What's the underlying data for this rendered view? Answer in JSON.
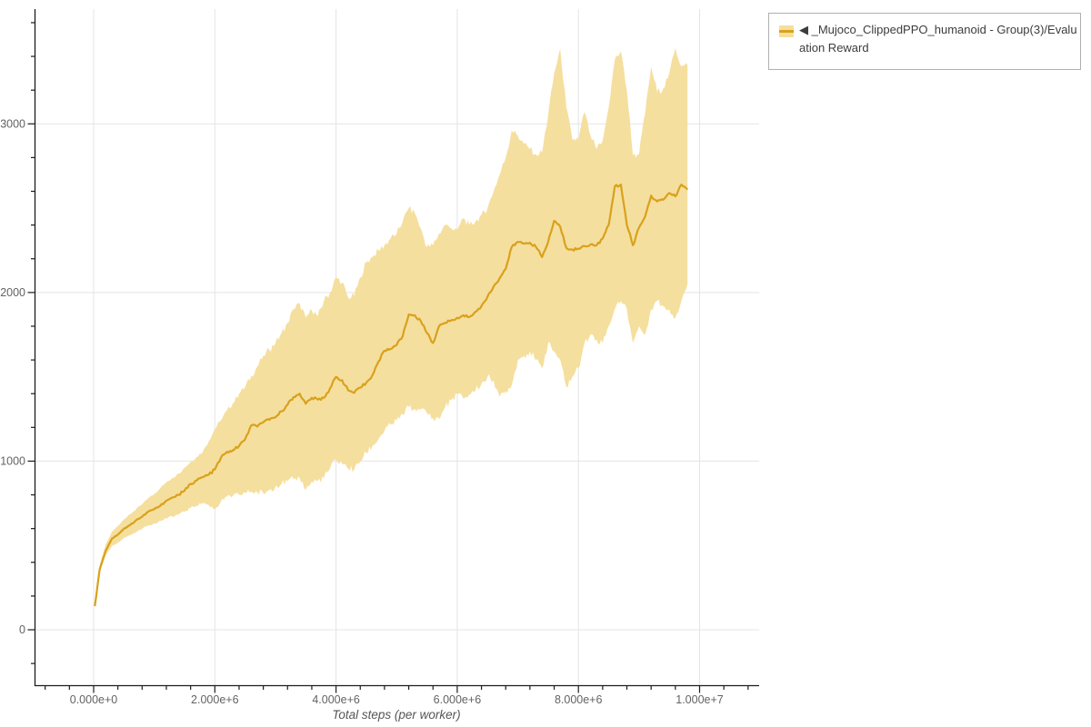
{
  "axis": {
    "x_label": "Total steps (per worker)",
    "x_tick_labels": [
      "0.000e+0",
      "2.000e+6",
      "4.000e+6",
      "6.000e+6",
      "8.000e+6",
      "1.000e+7"
    ],
    "x_tick_values_millions": [
      0,
      2,
      4,
      6,
      8,
      10
    ],
    "y_tick_labels": [
      "0",
      "1000",
      "2000",
      "3000"
    ],
    "y_tick_values": [
      0,
      1000,
      2000,
      3000
    ],
    "x_minor_step_millions": 0.4,
    "y_minor_step": 200
  },
  "legend": {
    "label": "◀ _Mujoco_ClippedPPO_humanoid - Group(3)/Evaluation Reward"
  },
  "colors": {
    "line": "#d9a11c",
    "band": "#f5df9e",
    "grid": "#e4e4e4",
    "axis": "#1c1c1c",
    "tick_text": "#636363",
    "axis_title": "#555555",
    "legend_border": "#b0b0b0",
    "legend_text": "#3c3c3c"
  },
  "chart_data": {
    "type": "line",
    "title": "",
    "xlabel": "Total steps (per worker)",
    "ylabel": "",
    "x_unit": "steps (millions)",
    "xlim_millions": [
      -0.98,
      10.98
    ],
    "ylim": [
      -330,
      3680
    ],
    "grid": true,
    "legend_position": "top-right",
    "series": [
      {
        "name": "_Mujoco_ClippedPPO_humanoid - Group(3)/Evaluation Reward",
        "x_millions": [
          0.02,
          0.1,
          0.2,
          0.3,
          0.4,
          0.5,
          0.6,
          0.7,
          0.8,
          0.9,
          1.0,
          1.1,
          1.2,
          1.3,
          1.4,
          1.5,
          1.6,
          1.7,
          1.8,
          1.9,
          2.0,
          2.1,
          2.2,
          2.3,
          2.4,
          2.5,
          2.6,
          2.7,
          2.8,
          2.9,
          3.0,
          3.1,
          3.2,
          3.3,
          3.4,
          3.5,
          3.6,
          3.7,
          3.8,
          3.9,
          4.0,
          4.1,
          4.2,
          4.3,
          4.4,
          4.5,
          4.6,
          4.7,
          4.8,
          4.9,
          5.0,
          5.1,
          5.2,
          5.3,
          5.4,
          5.5,
          5.6,
          5.7,
          5.8,
          5.9,
          6.0,
          6.1,
          6.2,
          6.3,
          6.4,
          6.5,
          6.6,
          6.7,
          6.8,
          6.9,
          7.0,
          7.1,
          7.2,
          7.3,
          7.4,
          7.5,
          7.6,
          7.7,
          7.8,
          7.9,
          8.0,
          8.1,
          8.2,
          8.3,
          8.4,
          8.5,
          8.6,
          8.7,
          8.8,
          8.9,
          9.0,
          9.1,
          9.2,
          9.3,
          9.4,
          9.5,
          9.6,
          9.7,
          9.8
        ],
        "mean": [
          140,
          360,
          470,
          540,
          565,
          600,
          620,
          650,
          670,
          700,
          715,
          735,
          765,
          785,
          800,
          825,
          865,
          885,
          905,
          920,
          950,
          1020,
          1055,
          1065,
          1090,
          1130,
          1212,
          1205,
          1230,
          1245,
          1260,
          1295,
          1335,
          1380,
          1400,
          1340,
          1375,
          1365,
          1375,
          1430,
          1500,
          1480,
          1420,
          1405,
          1435,
          1465,
          1510,
          1590,
          1655,
          1665,
          1690,
          1740,
          1870,
          1865,
          1830,
          1760,
          1700,
          1800,
          1820,
          1835,
          1850,
          1865,
          1855,
          1885,
          1920,
          1975,
          2035,
          2085,
          2140,
          2270,
          2300,
          2290,
          2295,
          2270,
          2210,
          2300,
          2425,
          2390,
          2265,
          2255,
          2260,
          2275,
          2285,
          2280,
          2320,
          2400,
          2630,
          2640,
          2400,
          2280,
          2385,
          2450,
          2575,
          2540,
          2550,
          2590,
          2570,
          2640,
          2610
        ],
        "band_high": [
          150,
          385,
          505,
          580,
          615,
          655,
          685,
          715,
          745,
          780,
          805,
          840,
          875,
          900,
          925,
          960,
          995,
          1025,
          1055,
          1120,
          1190,
          1240,
          1300,
          1345,
          1400,
          1440,
          1505,
          1560,
          1625,
          1660,
          1700,
          1760,
          1820,
          1900,
          1935,
          1850,
          1895,
          1860,
          1950,
          2000,
          2090,
          2060,
          1970,
          1980,
          2090,
          2180,
          2210,
          2250,
          2280,
          2320,
          2350,
          2420,
          2500,
          2470,
          2380,
          2270,
          2280,
          2350,
          2400,
          2380,
          2370,
          2440,
          2400,
          2420,
          2460,
          2500,
          2600,
          2700,
          2800,
          2960,
          2930,
          2880,
          2850,
          2820,
          2830,
          3050,
          3300,
          3445,
          3100,
          2905,
          2910,
          3070,
          2930,
          2850,
          2900,
          3100,
          3380,
          3430,
          3200,
          2810,
          2820,
          3060,
          3340,
          3190,
          3210,
          3300,
          3450,
          3340,
          3350
        ],
        "band_low": [
          130,
          335,
          440,
          495,
          515,
          545,
          560,
          580,
          600,
          618,
          630,
          645,
          660,
          672,
          683,
          700,
          722,
          737,
          752,
          740,
          715,
          760,
          790,
          795,
          800,
          812,
          820,
          815,
          810,
          830,
          850,
          865,
          880,
          893,
          900,
          830,
          878,
          884,
          900,
          955,
          1010,
          985,
          955,
          950,
          1000,
          1050,
          1090,
          1130,
          1180,
          1215,
          1240,
          1280,
          1320,
          1310,
          1305,
          1285,
          1255,
          1250,
          1320,
          1360,
          1400,
          1370,
          1395,
          1420,
          1460,
          1500,
          1480,
          1380,
          1415,
          1450,
          1600,
          1625,
          1650,
          1600,
          1550,
          1700,
          1650,
          1600,
          1440,
          1500,
          1550,
          1700,
          1750,
          1720,
          1700,
          1800,
          1900,
          1950,
          1900,
          1700,
          1800,
          1750,
          1900,
          1950,
          1920,
          1900,
          1850,
          1950,
          2050
        ]
      }
    ]
  }
}
